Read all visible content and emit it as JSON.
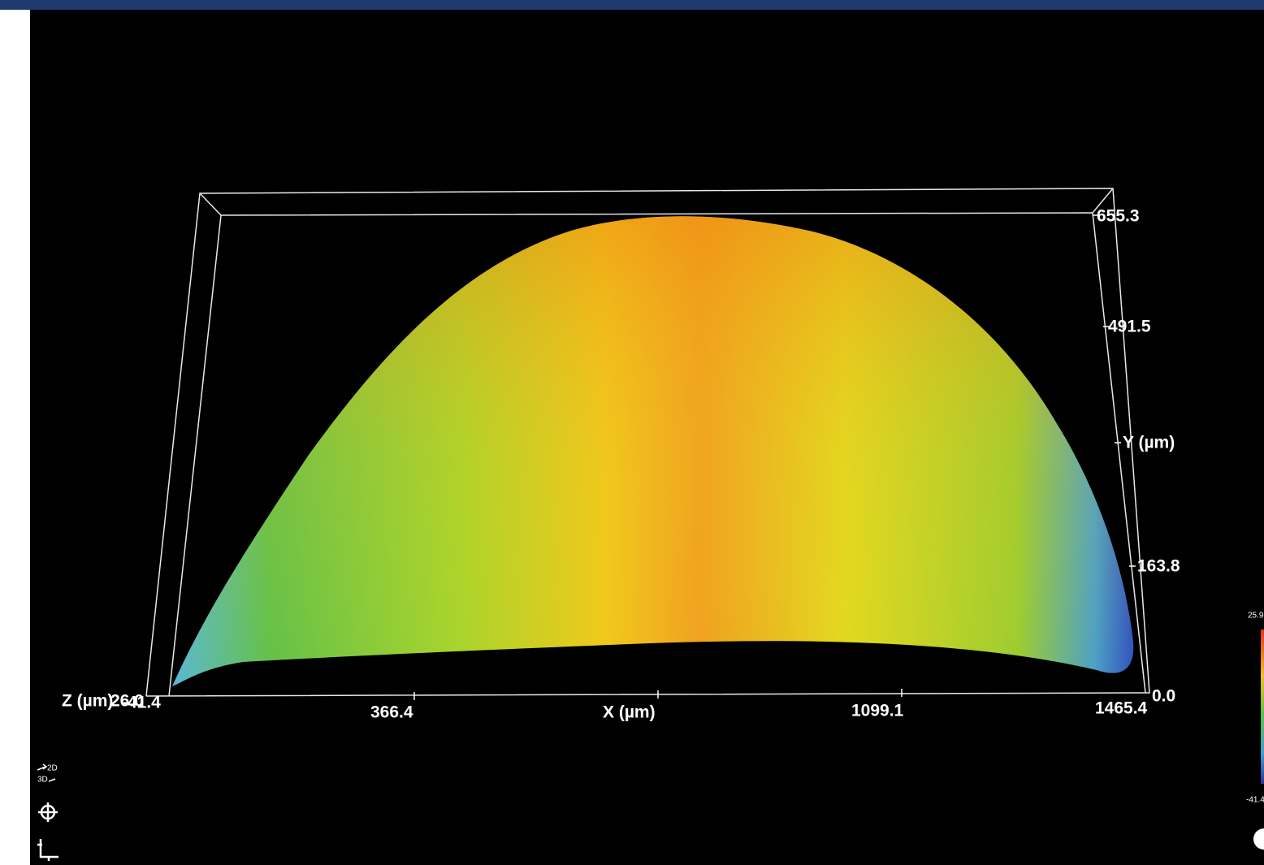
{
  "view_toggle": {
    "top": "2D",
    "bottom": "3D"
  },
  "plot": {
    "y_axis": {
      "label": "Y (µm)",
      "ticks": [
        "655.3",
        "491.5",
        "163.8",
        "0.0"
      ]
    },
    "x_axis": {
      "label": "X (µm)",
      "ticks": [
        "366.4",
        "1099.1",
        "1465.4"
      ]
    },
    "z_axis": {
      "label": "Z (µm)",
      "ticks": [
        "26.0",
        "-41.4"
      ]
    },
    "color_scale": {
      "max": "25.9",
      "min": "-41.4"
    }
  }
}
